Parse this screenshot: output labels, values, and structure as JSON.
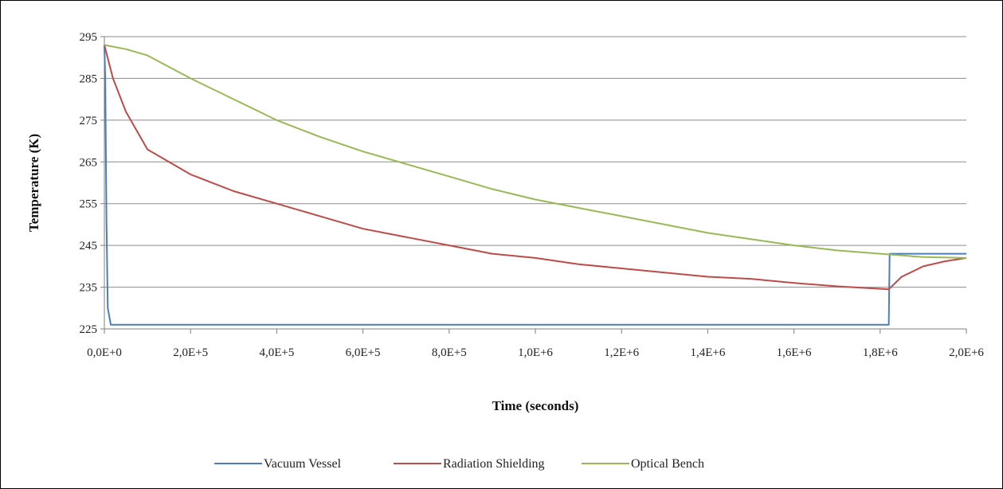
{
  "chart_data": {
    "type": "line",
    "title": "",
    "xlabel": "Time (seconds)",
    "ylabel": "Temperature (K)",
    "xlim": [
      0,
      2000000
    ],
    "ylim": [
      225,
      295
    ],
    "x_ticks": [
      0,
      200000,
      400000,
      600000,
      800000,
      1000000,
      1200000,
      1400000,
      1600000,
      1800000,
      2000000
    ],
    "x_tick_labels": [
      "0,0E+0",
      "2,0E+5",
      "4,0E+5",
      "6,0E+5",
      "8,0E+5",
      "1,0E+6",
      "1,2E+6",
      "1,4E+6",
      "1,6E+6",
      "1,8E+6",
      "2,0E+6"
    ],
    "y_ticks": [
      225,
      235,
      245,
      255,
      265,
      275,
      285,
      295
    ],
    "y_tick_labels": [
      "225",
      "235",
      "245",
      "255",
      "265",
      "275",
      "285",
      "295"
    ],
    "grid": "horizontal",
    "legend_position": "bottom",
    "series": [
      {
        "name": "Vacuum Vessel",
        "color": "#4a7ebb",
        "points": [
          [
            0,
            293
          ],
          [
            2000,
            285
          ],
          [
            5000,
            250
          ],
          [
            8000,
            230
          ],
          [
            15000,
            226
          ],
          [
            100000,
            226
          ],
          [
            1820000,
            226
          ],
          [
            1822000,
            243
          ],
          [
            2000000,
            243
          ]
        ]
      },
      {
        "name": "Radiation Shielding",
        "color": "#be4b48",
        "points": [
          [
            0,
            293
          ],
          [
            20000,
            285
          ],
          [
            50000,
            277
          ],
          [
            100000,
            268
          ],
          [
            200000,
            262
          ],
          [
            300000,
            258
          ],
          [
            400000,
            255
          ],
          [
            500000,
            252
          ],
          [
            600000,
            249
          ],
          [
            700000,
            247
          ],
          [
            800000,
            245
          ],
          [
            900000,
            243
          ],
          [
            1000000,
            242
          ],
          [
            1100000,
            240.5
          ],
          [
            1200000,
            239.5
          ],
          [
            1300000,
            238.5
          ],
          [
            1400000,
            237.5
          ],
          [
            1500000,
            237
          ],
          [
            1600000,
            236
          ],
          [
            1700000,
            235.2
          ],
          [
            1820000,
            234.5
          ],
          [
            1850000,
            237.5
          ],
          [
            1900000,
            240
          ],
          [
            1950000,
            241.2
          ],
          [
            2000000,
            242
          ]
        ]
      },
      {
        "name": "Optical Bench",
        "color": "#98b954",
        "points": [
          [
            0,
            293
          ],
          [
            50000,
            292
          ],
          [
            100000,
            290.5
          ],
          [
            200000,
            285
          ],
          [
            300000,
            280
          ],
          [
            400000,
            275
          ],
          [
            500000,
            271
          ],
          [
            600000,
            267.5
          ],
          [
            700000,
            264.5
          ],
          [
            800000,
            261.5
          ],
          [
            900000,
            258.5
          ],
          [
            1000000,
            256
          ],
          [
            1100000,
            254
          ],
          [
            1200000,
            252
          ],
          [
            1300000,
            250
          ],
          [
            1400000,
            248
          ],
          [
            1500000,
            246.5
          ],
          [
            1600000,
            245
          ],
          [
            1700000,
            243.8
          ],
          [
            1800000,
            243
          ],
          [
            1900000,
            242.2
          ],
          [
            2000000,
            242
          ]
        ]
      }
    ]
  }
}
